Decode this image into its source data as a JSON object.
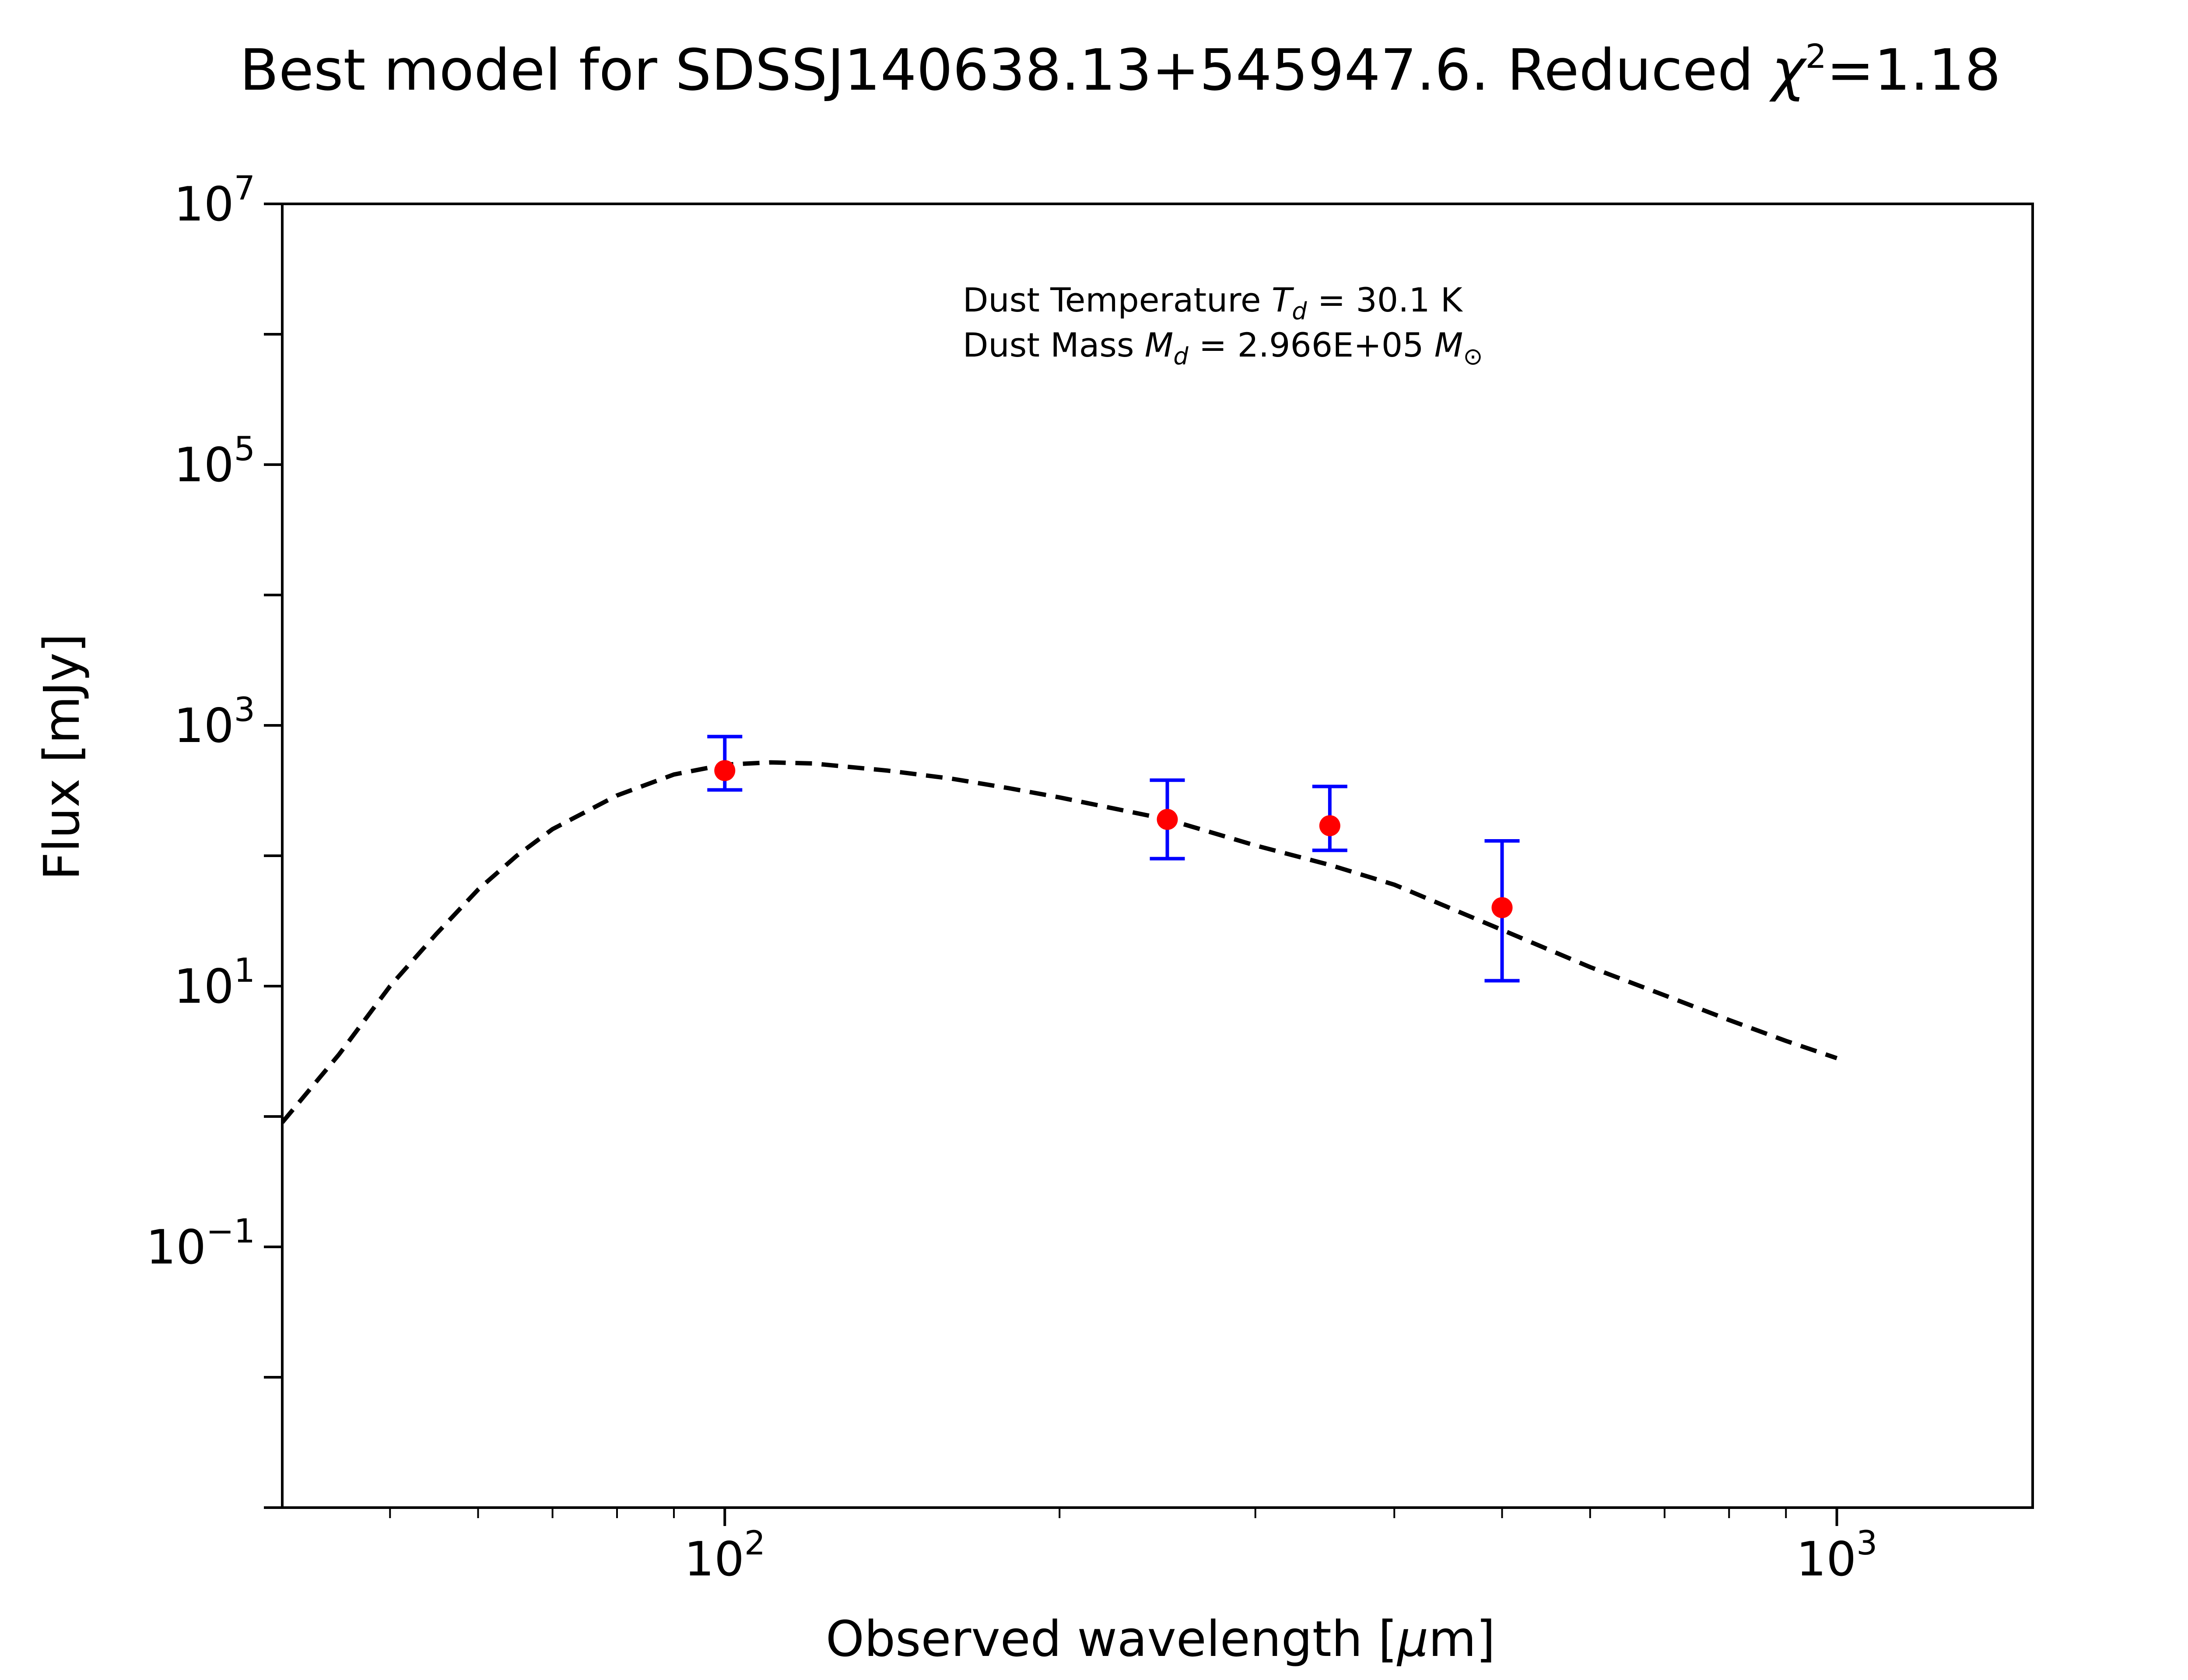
{
  "chart_data": {
    "type": "scatter",
    "title_prefix": "Best model for SDSSJ140638.13+545947.6. Reduced ",
    "title_chi": "χ",
    "title_chi_exp": "2",
    "title_suffix": "=1.18",
    "xlabel_prefix": "Observed wavelength [",
    "xlabel_mu": "μ",
    "xlabel_suffix": "m]",
    "ylabel": "Flux [mJy]",
    "xscale": "log",
    "yscale": "log",
    "xlim": [
      40,
      1500
    ],
    "ylim": [
      0.001,
      10000000
    ],
    "x_ticks": [
      {
        "base": "10",
        "exp": "2",
        "value": 100
      },
      {
        "base": "10",
        "exp": "3",
        "value": 1000
      }
    ],
    "y_ticks": [
      {
        "base": "10",
        "exp": "−1",
        "value": 0.1
      },
      {
        "base": "10",
        "exp": "1",
        "value": 10
      },
      {
        "base": "10",
        "exp": "3",
        "value": 1000
      },
      {
        "base": "10",
        "exp": "5",
        "value": 100000
      },
      {
        "base": "10",
        "exp": "7",
        "value": 10000000
      }
    ],
    "annotation": {
      "line1_prefix": "Dust Temperature ",
      "line1_var": "T",
      "line1_sub": "d",
      "line1_suffix": " = 30.1 K",
      "line2_prefix": "Dust Mass ",
      "line2_var": "M",
      "line2_sub": "d",
      "line2_mid": " = 2.966E+05 ",
      "line2_unit": "M",
      "line2_unit_sub": "⊙"
    },
    "observations": {
      "marker_color": "#ff0000",
      "errorbar_color": "#0000ff",
      "points": [
        {
          "x": 100,
          "y": 450,
          "err_low": 320,
          "err_high": 820
        },
        {
          "x": 250,
          "y": 190,
          "err_low": 95,
          "err_high": 380
        },
        {
          "x": 350,
          "y": 170,
          "err_low": 110,
          "err_high": 340
        },
        {
          "x": 500,
          "y": 40,
          "err_low": 11,
          "err_high": 130
        }
      ]
    },
    "model": {
      "line_style": "dashed",
      "color": "#000000",
      "x": [
        40,
        45,
        50,
        55,
        60,
        65,
        70,
        80,
        90,
        100,
        110,
        120,
        140,
        160,
        180,
        200,
        250,
        300,
        350,
        400,
        500,
        600,
        700,
        800,
        900,
        1000
      ],
      "y": [
        0.9,
        3.0,
        10,
        25,
        55,
        100,
        160,
        290,
        420,
        500,
        520,
        510,
        450,
        390,
        330,
        280,
        190,
        120,
        85,
        60,
        27,
        14,
        8.5,
        5.5,
        3.8,
        2.8
      ]
    }
  }
}
